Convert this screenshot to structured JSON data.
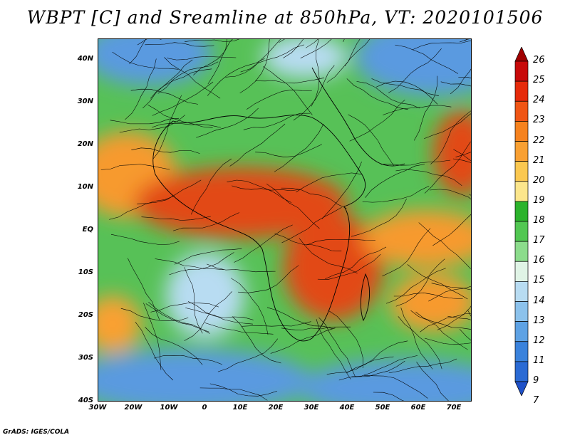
{
  "title": "WBPT [C] and Sreamline at 850hPa, VT: 2020101506",
  "credit": "GrADS: IGES/COLA",
  "map": {
    "lat_labels": [
      "40N",
      "30N",
      "20N",
      "10N",
      "EQ",
      "10S",
      "20S",
      "30S",
      "40S"
    ],
    "lon_labels": [
      "30W",
      "20W",
      "10W",
      "0",
      "10E",
      "20E",
      "30E",
      "40E",
      "50E",
      "60E",
      "70E"
    ]
  },
  "colorbar": {
    "labels": [
      "26",
      "25",
      "24",
      "23",
      "22",
      "21",
      "20",
      "19",
      "18",
      "17",
      "16",
      "15",
      "14",
      "13",
      "12",
      "11",
      "9",
      "7"
    ],
    "colors": [
      "#a00000",
      "#c80a0a",
      "#e62a0a",
      "#f05514",
      "#f6821e",
      "#f9a032",
      "#fbc850",
      "#fce68c",
      "#2cb32c",
      "#52c752",
      "#8cdc8c",
      "#e0f4e6",
      "#b8dcf2",
      "#8cc2ec",
      "#5ea2e4",
      "#3a82dc",
      "#2a6ad4",
      "#1e50c8"
    ]
  },
  "colors": {
    "hot": "#e24a18",
    "warm": "#f79a2e",
    "mild": "#57c157",
    "cool": "#5a9ae0",
    "cold": "#2a62d2",
    "streamline": "#000000"
  }
}
